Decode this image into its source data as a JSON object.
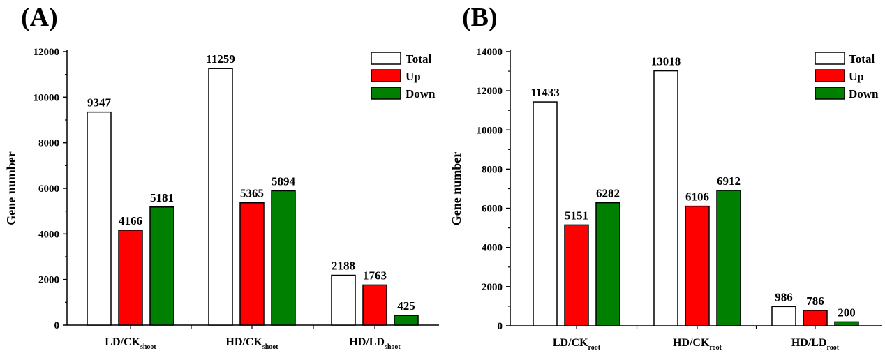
{
  "colors": {
    "Total": "#ffffff",
    "Up": "#ff0000",
    "Down": "#008000"
  },
  "chart_data": [
    {
      "type": "bar",
      "panel_label": "(A)",
      "ylabel": "Gene number",
      "ylim": [
        0,
        12000
      ],
      "yticks": [
        0,
        2000,
        4000,
        6000,
        8000,
        10000,
        12000
      ],
      "ytick_labels": [
        "0",
        "2000",
        "4000",
        "6000",
        "8000",
        "10000",
        "12000"
      ],
      "categories": [
        {
          "main": "LD/CK",
          "sub": "shoot"
        },
        {
          "main": "HD/CK",
          "sub": "shoot"
        },
        {
          "main": "HD/LD",
          "sub": "shoot"
        }
      ],
      "series": [
        {
          "name": "Total",
          "values": [
            9347,
            11259,
            2188
          ],
          "labels": [
            "9347",
            "11259",
            "2188"
          ]
        },
        {
          "name": "Up",
          "values": [
            4166,
            5365,
            1763
          ],
          "labels": [
            "4166",
            "5365",
            "1763"
          ]
        },
        {
          "name": "Down",
          "values": [
            5181,
            5894,
            425
          ],
          "labels": [
            "5181",
            "5894",
            "425"
          ]
        }
      ],
      "legend_position": "top-right",
      "grid": false
    },
    {
      "type": "bar",
      "panel_label": "(B)",
      "ylabel": "Gene number",
      "ylim": [
        0,
        14000
      ],
      "yticks": [
        0,
        2000,
        4000,
        6000,
        8000,
        10000,
        12000,
        14000
      ],
      "ytick_labels": [
        "0",
        "2000",
        "4000",
        "6000",
        "8000",
        "10000",
        "12000",
        "14000"
      ],
      "categories": [
        {
          "main": "LD/CK",
          "sub": "root"
        },
        {
          "main": "HD/CK",
          "sub": "root"
        },
        {
          "main": "HD/LD",
          "sub": "root"
        }
      ],
      "series": [
        {
          "name": "Total",
          "values": [
            11433,
            13018,
            986
          ],
          "labels": [
            "11433",
            "13018",
            "986"
          ]
        },
        {
          "name": "Up",
          "values": [
            5151,
            6106,
            786
          ],
          "labels": [
            "5151",
            "6106",
            "786"
          ]
        },
        {
          "name": "Down",
          "values": [
            6282,
            6912,
            200
          ],
          "labels": [
            "6282",
            "6912",
            "200"
          ]
        }
      ],
      "legend_position": "top-right",
      "grid": false
    }
  ]
}
